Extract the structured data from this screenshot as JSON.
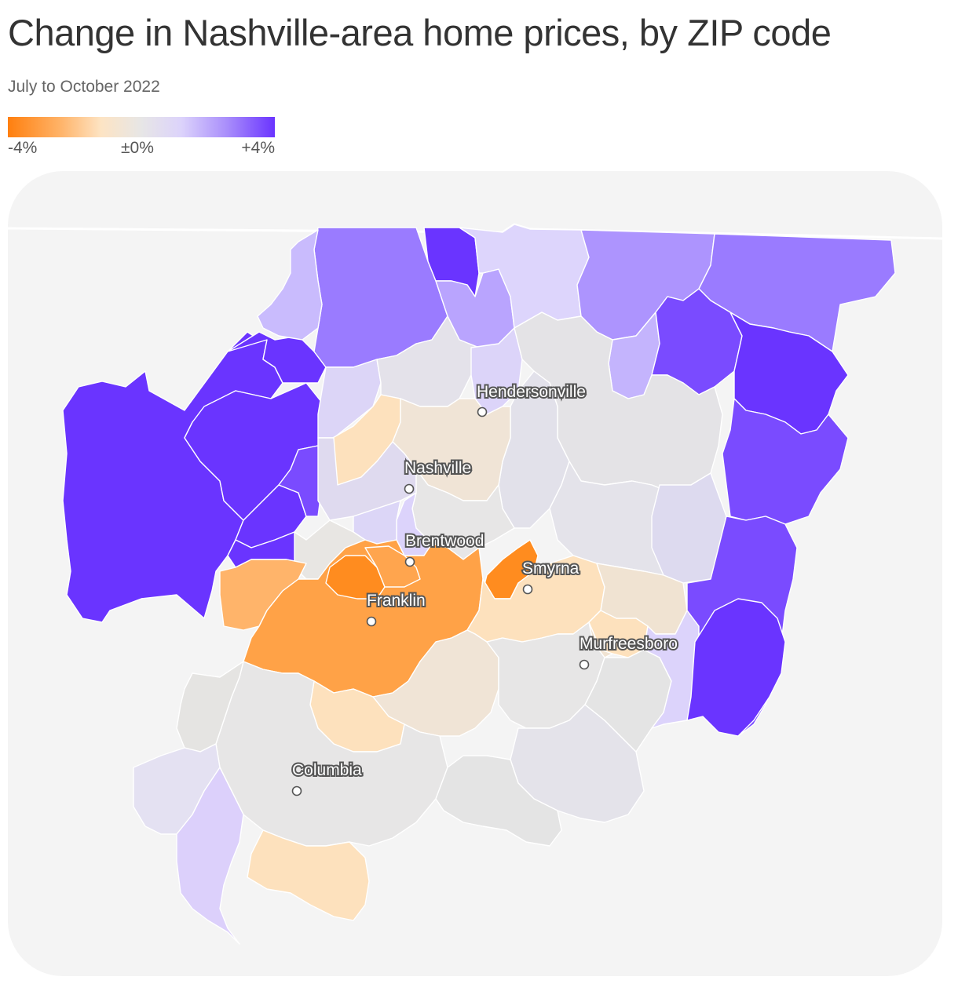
{
  "header": {
    "title": "Change in Nashville-area home prices, by ZIP code",
    "subtitle": "July to October 2022"
  },
  "legend": {
    "min_label": "-4%",
    "mid_label": "±0%",
    "max_label": "+4%",
    "colors": [
      "#ff7f0e",
      "#ffb46a",
      "#fde4c4",
      "#e7e6e6",
      "#dcd3fb",
      "#a98efb",
      "#6a34ff"
    ]
  },
  "map": {
    "background_color": "#f4f4f4",
    "boundary_color": "#ffffff",
    "cities": [
      {
        "name": "Hendersonville"
      },
      {
        "name": "Nashville"
      },
      {
        "name": "Brentwood"
      },
      {
        "name": "Smyrna"
      },
      {
        "name": "Franklin"
      },
      {
        "name": "Murfreesboro"
      },
      {
        "name": "Columbia"
      }
    ]
  }
}
